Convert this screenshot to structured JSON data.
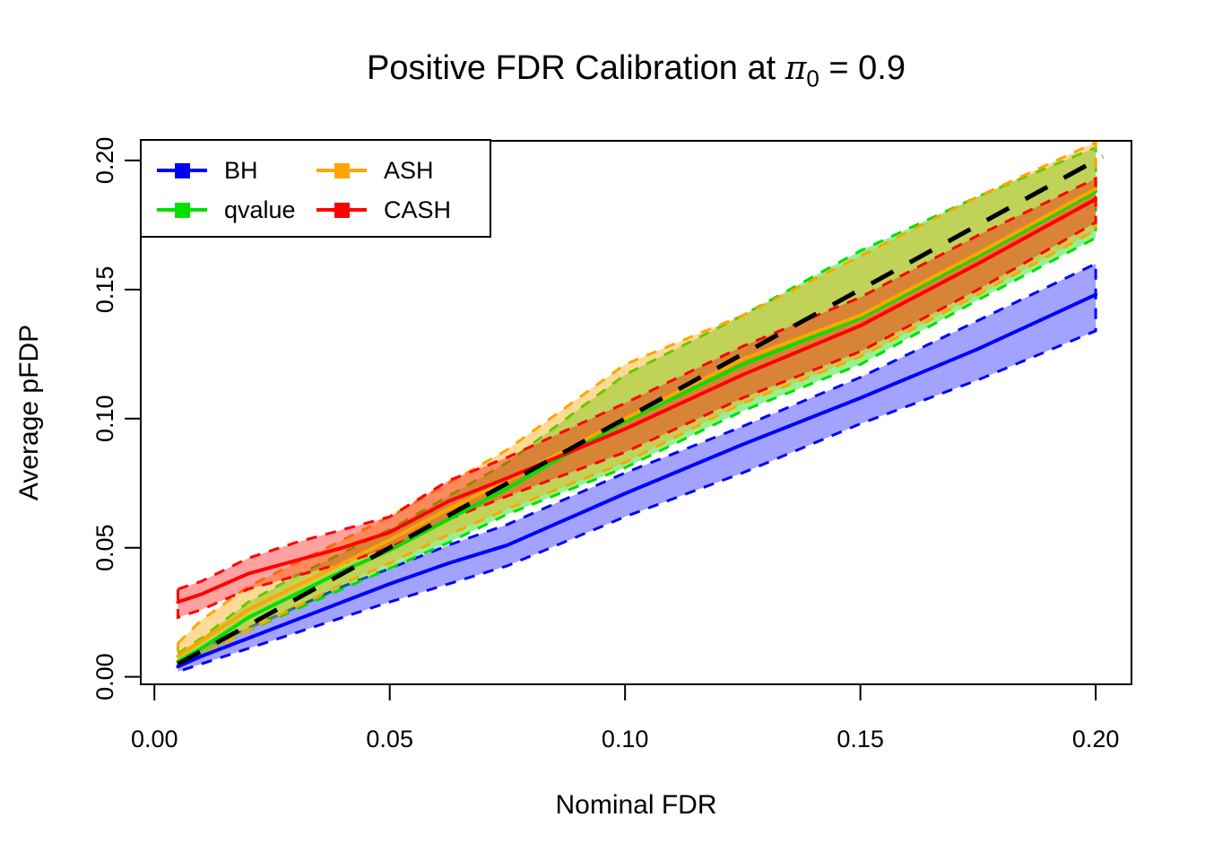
{
  "title": {
    "prefix": "Positive FDR Calibration at ",
    "pi": "π",
    "pi_sub": "0",
    "suffix": " = 0.9"
  },
  "axes": {
    "x": {
      "label": "Nominal FDR",
      "ticks": [
        "0.00",
        "0.05",
        "0.10",
        "0.15",
        "0.20"
      ],
      "tick_values": [
        0.0,
        0.05,
        0.1,
        0.15,
        0.2
      ]
    },
    "y": {
      "label": "Average pFDP",
      "ticks": [
        "0.00",
        "0.05",
        "0.10",
        "0.15",
        "0.20"
      ],
      "tick_values": [
        0.0,
        0.05,
        0.1,
        0.15,
        0.2
      ]
    }
  },
  "legend": {
    "position": "topleft",
    "entries": [
      {
        "label": "BH",
        "color": "#0000FF"
      },
      {
        "label": "qvalue",
        "color": "#00E000"
      },
      {
        "label": "ASH",
        "color": "#FFA500"
      },
      {
        "label": "CASH",
        "color": "#FF0000"
      }
    ]
  },
  "chart_data": {
    "type": "line",
    "title": "Positive FDR Calibration at pi0 = 0.9",
    "xlabel": "Nominal FDR",
    "ylabel": "Average pFDP",
    "xlim": [
      -0.0029,
      0.2076
    ],
    "ylim": [
      -0.0029,
      0.2076
    ],
    "grid": "off",
    "legend_position": "topleft",
    "x": [
      0.005,
      0.01,
      0.02,
      0.03,
      0.04,
      0.05,
      0.0625,
      0.075,
      0.1,
      0.125,
      0.15,
      0.175,
      0.2
    ],
    "series": [
      {
        "name": "BH",
        "color": "#0000FF",
        "fill_opacity": 0.36,
        "values": [
          0.004,
          0.008,
          0.015,
          0.022,
          0.029,
          0.036,
          0.044,
          0.051,
          0.071,
          0.09,
          0.108,
          0.127,
          0.148
        ],
        "band_lower": [
          0.002,
          0.005,
          0.011,
          0.017,
          0.023,
          0.029,
          0.036,
          0.043,
          0.062,
          0.079,
          0.098,
          0.115,
          0.134
        ],
        "band_upper": [
          0.006,
          0.011,
          0.019,
          0.027,
          0.035,
          0.042,
          0.051,
          0.059,
          0.079,
          0.097,
          0.116,
          0.138,
          0.16
        ]
      },
      {
        "name": "qvalue",
        "color": "#00E000",
        "fill_opacity": 0.42,
        "values": [
          0.006,
          0.011,
          0.023,
          0.032,
          0.041,
          0.049,
          0.061,
          0.073,
          0.099,
          0.121,
          0.139,
          0.163,
          0.188
        ],
        "band_lower": [
          0.004,
          0.008,
          0.018,
          0.026,
          0.034,
          0.042,
          0.052,
          0.063,
          0.081,
          0.103,
          0.121,
          0.146,
          0.17
        ],
        "band_upper": [
          0.009,
          0.015,
          0.029,
          0.039,
          0.048,
          0.057,
          0.07,
          0.083,
          0.117,
          0.14,
          0.165,
          0.186,
          0.205
        ]
      },
      {
        "name": "ASH",
        "color": "#FFA500",
        "fill_opacity": 0.41,
        "values": [
          0.008,
          0.014,
          0.026,
          0.035,
          0.044,
          0.053,
          0.065,
          0.076,
          0.1,
          0.123,
          0.14,
          0.164,
          0.189
        ],
        "band_lower": [
          0.004,
          0.008,
          0.018,
          0.027,
          0.036,
          0.044,
          0.055,
          0.065,
          0.083,
          0.106,
          0.124,
          0.148,
          0.173
        ],
        "band_upper": [
          0.013,
          0.022,
          0.035,
          0.044,
          0.053,
          0.062,
          0.075,
          0.088,
          0.121,
          0.14,
          0.163,
          0.186,
          0.207
        ]
      },
      {
        "name": "CASH",
        "color": "#FF0000",
        "fill_opacity": 0.37,
        "values": [
          0.029,
          0.032,
          0.04,
          0.045,
          0.05,
          0.056,
          0.068,
          0.077,
          0.096,
          0.117,
          0.136,
          0.16,
          0.185
        ],
        "band_lower": [
          0.023,
          0.026,
          0.034,
          0.039,
          0.044,
          0.05,
          0.061,
          0.07,
          0.087,
          0.108,
          0.126,
          0.15,
          0.176
        ],
        "band_upper": [
          0.034,
          0.037,
          0.046,
          0.052,
          0.057,
          0.062,
          0.076,
          0.085,
          0.106,
          0.128,
          0.147,
          0.171,
          0.193
        ]
      }
    ],
    "reference_line": {
      "style": "dashed",
      "color": "#000000",
      "from": [
        0.005,
        0.005
      ],
      "to": [
        0.2015,
        0.2015
      ],
      "meaning": "y = x identity line"
    }
  }
}
